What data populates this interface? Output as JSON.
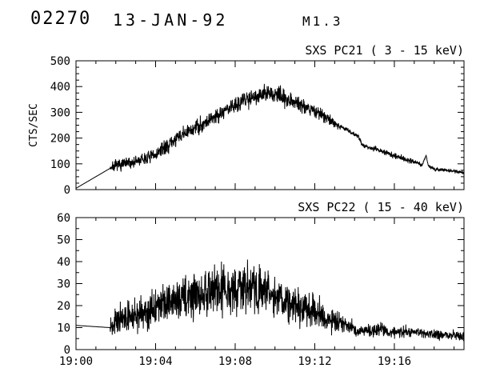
{
  "header": {
    "sequence_number": "02270",
    "date": "13-JAN-92",
    "flare_class": "M1.3"
  },
  "colors": {
    "background": "#ffffff",
    "foreground": "#000000"
  },
  "chart_data": [
    {
      "type": "line",
      "name": "pc21",
      "title": "SXS PC21 (  3 - 15 keV)",
      "ylabel": "CTS/SEC",
      "ylim": [
        0,
        500
      ],
      "yticks": [
        0,
        100,
        200,
        300,
        400,
        500
      ],
      "y_minor": 25,
      "xlim": [
        0,
        19.5
      ],
      "x_unit": "minutes after 19:00",
      "x_minor": 1,
      "xticks": [
        {
          "t": 0,
          "label": "19:00"
        },
        {
          "t": 4,
          "label": "19:04"
        },
        {
          "t": 8,
          "label": "19:08"
        },
        {
          "t": 12,
          "label": "19:12"
        },
        {
          "t": 16,
          "label": "19:16"
        }
      ],
      "show_xlabels": false,
      "grid": false,
      "legend": false,
      "points_format": [
        "time_min_after_19:00",
        "counts_per_sec_mean",
        "noise_amplitude"
      ],
      "series": [
        {
          "name": "SXS PC21",
          "noise_seed": 7,
          "points": [
            [
              0.0,
              5,
              0
            ],
            [
              1.7,
              82,
              0
            ],
            [
              1.76,
              88,
              16
            ],
            [
              2.0,
              92,
              18
            ],
            [
              2.5,
              100,
              19
            ],
            [
              3.0,
              108,
              20
            ],
            [
              3.5,
              120,
              20
            ],
            [
              4.0,
              135,
              21
            ],
            [
              4.5,
              165,
              23
            ],
            [
              5.0,
              195,
              24
            ],
            [
              5.5,
              218,
              25
            ],
            [
              6.0,
              240,
              26
            ],
            [
              6.5,
              262,
              26
            ],
            [
              7.0,
              285,
              27
            ],
            [
              7.5,
              308,
              27
            ],
            [
              8.0,
              330,
              28
            ],
            [
              8.5,
              350,
              28
            ],
            [
              9.0,
              365,
              28
            ],
            [
              9.5,
              372,
              28
            ],
            [
              10.0,
              368,
              28
            ],
            [
              10.5,
              358,
              27
            ],
            [
              11.0,
              342,
              26
            ],
            [
              11.5,
              324,
              25
            ],
            [
              12.0,
              305,
              24
            ],
            [
              12.5,
              282,
              20
            ],
            [
              13.0,
              258,
              14
            ],
            [
              13.3,
              245,
              7
            ],
            [
              14.0,
              215,
              7
            ],
            [
              14.2,
              205,
              6
            ],
            [
              14.4,
              172,
              6
            ],
            [
              15.0,
              158,
              9
            ],
            [
              16.0,
              132,
              9
            ],
            [
              17.0,
              108,
              8
            ],
            [
              17.4,
              95,
              5
            ],
            [
              17.5,
              118,
              3
            ],
            [
              17.6,
              133,
              3
            ],
            [
              17.7,
              92,
              5
            ],
            [
              18.0,
              80,
              6
            ],
            [
              18.8,
              74,
              6
            ],
            [
              19.5,
              65,
              6
            ]
          ]
        }
      ]
    },
    {
      "type": "line",
      "name": "pc22",
      "title": "SXS PC22 ( 15 - 40 keV)",
      "ylabel": "",
      "ylim": [
        0,
        60
      ],
      "yticks": [
        0,
        10,
        20,
        30,
        40,
        50,
        60
      ],
      "y_minor": 5,
      "xlim": [
        0,
        19.5
      ],
      "x_unit": "minutes after 19:00",
      "x_minor": 1,
      "xticks": [
        {
          "t": 0,
          "label": "19:00"
        },
        {
          "t": 4,
          "label": "19:04"
        },
        {
          "t": 8,
          "label": "19:08"
        },
        {
          "t": 12,
          "label": "19:12"
        },
        {
          "t": 16,
          "label": "19:16"
        }
      ],
      "show_xlabels": true,
      "grid": false,
      "legend": false,
      "points_format": [
        "time_min_after_19:00",
        "counts_per_sec_mean",
        "noise_amplitude"
      ],
      "series": [
        {
          "name": "SXS PC22",
          "noise_seed": 13,
          "points": [
            [
              0.0,
              11,
              0
            ],
            [
              1.7,
              10,
              0
            ],
            [
              1.76,
              12,
              4
            ],
            [
              2.0,
              13,
              5
            ],
            [
              2.5,
              14,
              5
            ],
            [
              3.0,
              16,
              6
            ],
            [
              3.5,
              17,
              6
            ],
            [
              4.0,
              19,
              7
            ],
            [
              4.5,
              21,
              7
            ],
            [
              5.0,
              22,
              7
            ],
            [
              5.5,
              24,
              8
            ],
            [
              6.0,
              25,
              8
            ],
            [
              6.5,
              26,
              8
            ],
            [
              7.0,
              27,
              9
            ],
            [
              7.5,
              28,
              9
            ],
            [
              8.0,
              28,
              9
            ],
            [
              8.5,
              28,
              9
            ],
            [
              9.0,
              27,
              9
            ],
            [
              9.5,
              26,
              8
            ],
            [
              10.0,
              24,
              8
            ],
            [
              10.5,
              22,
              7
            ],
            [
              11.0,
              21,
              7
            ],
            [
              11.5,
              19,
              6
            ],
            [
              12.0,
              17,
              6
            ],
            [
              12.5,
              15,
              5
            ],
            [
              13.0,
              13,
              5
            ],
            [
              13.6,
              11,
              3
            ],
            [
              13.9,
              10,
              2.5
            ],
            [
              14.1,
              8,
              2
            ],
            [
              15.0,
              9,
              2.5
            ],
            [
              16.0,
              8,
              2.5
            ],
            [
              17.0,
              8,
              2
            ],
            [
              18.0,
              7,
              2
            ],
            [
              19.5,
              6,
              2
            ]
          ]
        }
      ]
    }
  ]
}
